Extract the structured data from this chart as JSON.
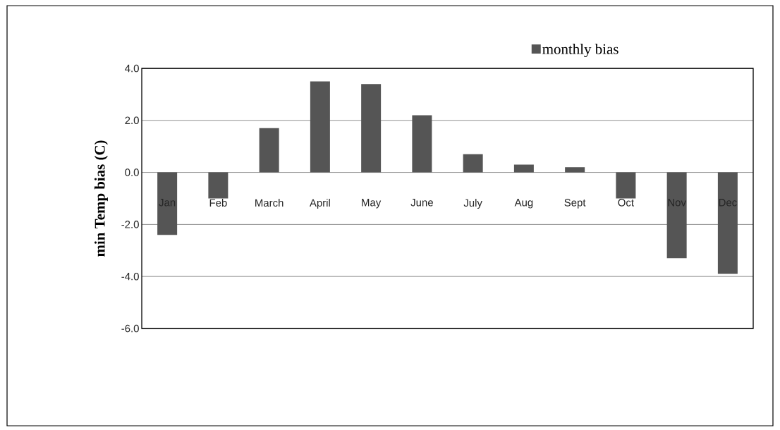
{
  "chart_data": {
    "type": "bar",
    "ylabel": "min Temp bias (C)",
    "categories": [
      "Jan",
      "Feb",
      "March",
      "April",
      "May",
      "June",
      "July",
      "Aug",
      "Sept",
      "Oct",
      "Nov",
      "Dec"
    ],
    "series": [
      {
        "name": "monthly bias",
        "color": "#555555",
        "values": [
          -2.4,
          -1.0,
          1.7,
          3.5,
          3.4,
          2.2,
          0.7,
          0.3,
          0.2,
          -1.0,
          -3.3,
          -3.9
        ]
      }
    ],
    "ylim": [
      -6,
      4
    ],
    "yticks": [
      {
        "value": -6,
        "label": "-6.0"
      },
      {
        "value": -4,
        "label": "-4.0"
      },
      {
        "value": -2,
        "label": "-2.0"
      },
      {
        "value": 0,
        "label": "0.0"
      },
      {
        "value": 2,
        "label": "2.0"
      },
      {
        "value": 4,
        "label": "4.0"
      }
    ],
    "grid": "y",
    "legend": "top right"
  }
}
